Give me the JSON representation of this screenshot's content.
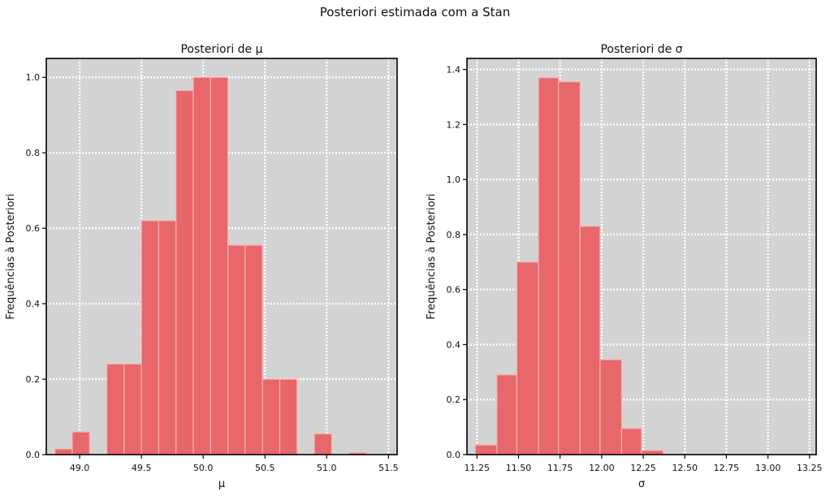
{
  "figure": {
    "suptitle": "Posteriori estimada com a Stan"
  },
  "colors": {
    "bar": "#e8676b",
    "bar_edge": "#f2b3b5",
    "plot_bg": "#d3d3d3",
    "grid": "#ffffff",
    "frame": "#000000"
  },
  "chart_data": [
    {
      "type": "bar",
      "title": "Posteriori de μ",
      "xlabel": "μ",
      "ylabel": "Frequências à Posteriori",
      "xlim": [
        48.73,
        51.57
      ],
      "ylim": [
        0,
        1.05
      ],
      "xticks": [
        49.0,
        49.5,
        50.0,
        50.5,
        51.0,
        51.5
      ],
      "xtick_labels": [
        "49.0",
        "49.5",
        "50.0",
        "50.5",
        "51.0",
        "51.5"
      ],
      "yticks": [
        0,
        0.2,
        0.4,
        0.6,
        0.8,
        1.0
      ],
      "ytick_labels": [
        "0.0",
        "0.2",
        "0.4",
        "0.6",
        "0.8",
        "1.0"
      ],
      "grid": true,
      "bins": [
        {
          "x0": 48.8,
          "x1": 48.94,
          "value": 0.015
        },
        {
          "x0": 48.94,
          "x1": 49.08,
          "value": 0.06
        },
        {
          "x0": 49.08,
          "x1": 49.22,
          "value": 0.0
        },
        {
          "x0": 49.22,
          "x1": 49.36,
          "value": 0.24
        },
        {
          "x0": 49.36,
          "x1": 49.5,
          "value": 0.24
        },
        {
          "x0": 49.5,
          "x1": 49.64,
          "value": 0.62
        },
        {
          "x0": 49.64,
          "x1": 49.78,
          "value": 0.62
        },
        {
          "x0": 49.78,
          "x1": 49.92,
          "value": 0.965
        },
        {
          "x0": 49.92,
          "x1": 50.06,
          "value": 1.0
        },
        {
          "x0": 50.06,
          "x1": 50.2,
          "value": 1.0
        },
        {
          "x0": 50.2,
          "x1": 50.34,
          "value": 0.555
        },
        {
          "x0": 50.34,
          "x1": 50.48,
          "value": 0.555
        },
        {
          "x0": 50.48,
          "x1": 50.62,
          "value": 0.2
        },
        {
          "x0": 50.62,
          "x1": 50.76,
          "value": 0.2
        },
        {
          "x0": 50.76,
          "x1": 50.9,
          "value": 0.0
        },
        {
          "x0": 50.9,
          "x1": 51.04,
          "value": 0.055
        },
        {
          "x0": 51.04,
          "x1": 51.18,
          "value": 0.0
        },
        {
          "x0": 51.18,
          "x1": 51.32,
          "value": 0.005
        }
      ]
    },
    {
      "type": "bar",
      "title": "Posteriori de σ",
      "xlabel": "σ",
      "ylabel": "Frequências à Posteriori",
      "xlim": [
        11.19,
        13.29
      ],
      "ylim": [
        0,
        1.44
      ],
      "xticks": [
        11.25,
        11.5,
        11.75,
        12.0,
        12.25,
        12.5,
        12.75,
        13.0,
        13.25
      ],
      "xtick_labels": [
        "11.25",
        "11.50",
        "11.75",
        "12.00",
        "12.25",
        "12.50",
        "12.75",
        "13.00",
        "13.25"
      ],
      "yticks": [
        0,
        0.2,
        0.4,
        0.6,
        0.8,
        1.0,
        1.2,
        1.4
      ],
      "ytick_labels": [
        "0.0",
        "0.2",
        "0.4",
        "0.6",
        "0.8",
        "1.0",
        "1.2",
        "1.4"
      ],
      "grid": true,
      "bins": [
        {
          "x0": 11.24,
          "x1": 11.37,
          "value": 0.035
        },
        {
          "x0": 11.37,
          "x1": 11.49,
          "value": 0.29
        },
        {
          "x0": 11.49,
          "x1": 11.62,
          "value": 0.7
        },
        {
          "x0": 11.62,
          "x1": 11.74,
          "value": 1.37
        },
        {
          "x0": 11.74,
          "x1": 11.87,
          "value": 1.355
        },
        {
          "x0": 11.87,
          "x1": 11.99,
          "value": 0.83
        },
        {
          "x0": 11.99,
          "x1": 12.12,
          "value": 0.345
        },
        {
          "x0": 12.12,
          "x1": 12.24,
          "value": 0.095
        },
        {
          "x0": 12.24,
          "x1": 12.37,
          "value": 0.015
        }
      ]
    }
  ]
}
